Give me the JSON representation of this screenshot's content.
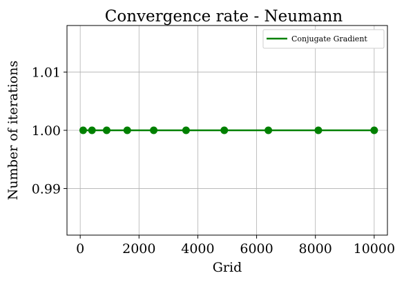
{
  "chart_data": {
    "type": "line",
    "title": "Convergence rate - Neumann",
    "xlabel": "Grid",
    "ylabel": "Number of iterations",
    "xlim": [
      -450,
      10450
    ],
    "ylim": [
      0.982,
      1.018
    ],
    "xticks": [
      0,
      2000,
      4000,
      6000,
      8000,
      10000
    ],
    "yticks": [
      0.99,
      1.0,
      1.01
    ],
    "xtick_labels": [
      "0",
      "2000",
      "4000",
      "6000",
      "8000",
      "10000"
    ],
    "ytick_labels": [
      "0.99",
      "1.00",
      "1.01"
    ],
    "grid": true,
    "legend_position": "top-right",
    "series": [
      {
        "name": "Conjugate Gradient",
        "color": "#008000",
        "marker": "circle",
        "x": [
          100,
          400,
          900,
          1600,
          2500,
          3600,
          4900,
          6400,
          8100,
          10000
        ],
        "y": [
          1,
          1,
          1,
          1,
          1,
          1,
          1,
          1,
          1,
          1
        ]
      }
    ]
  }
}
